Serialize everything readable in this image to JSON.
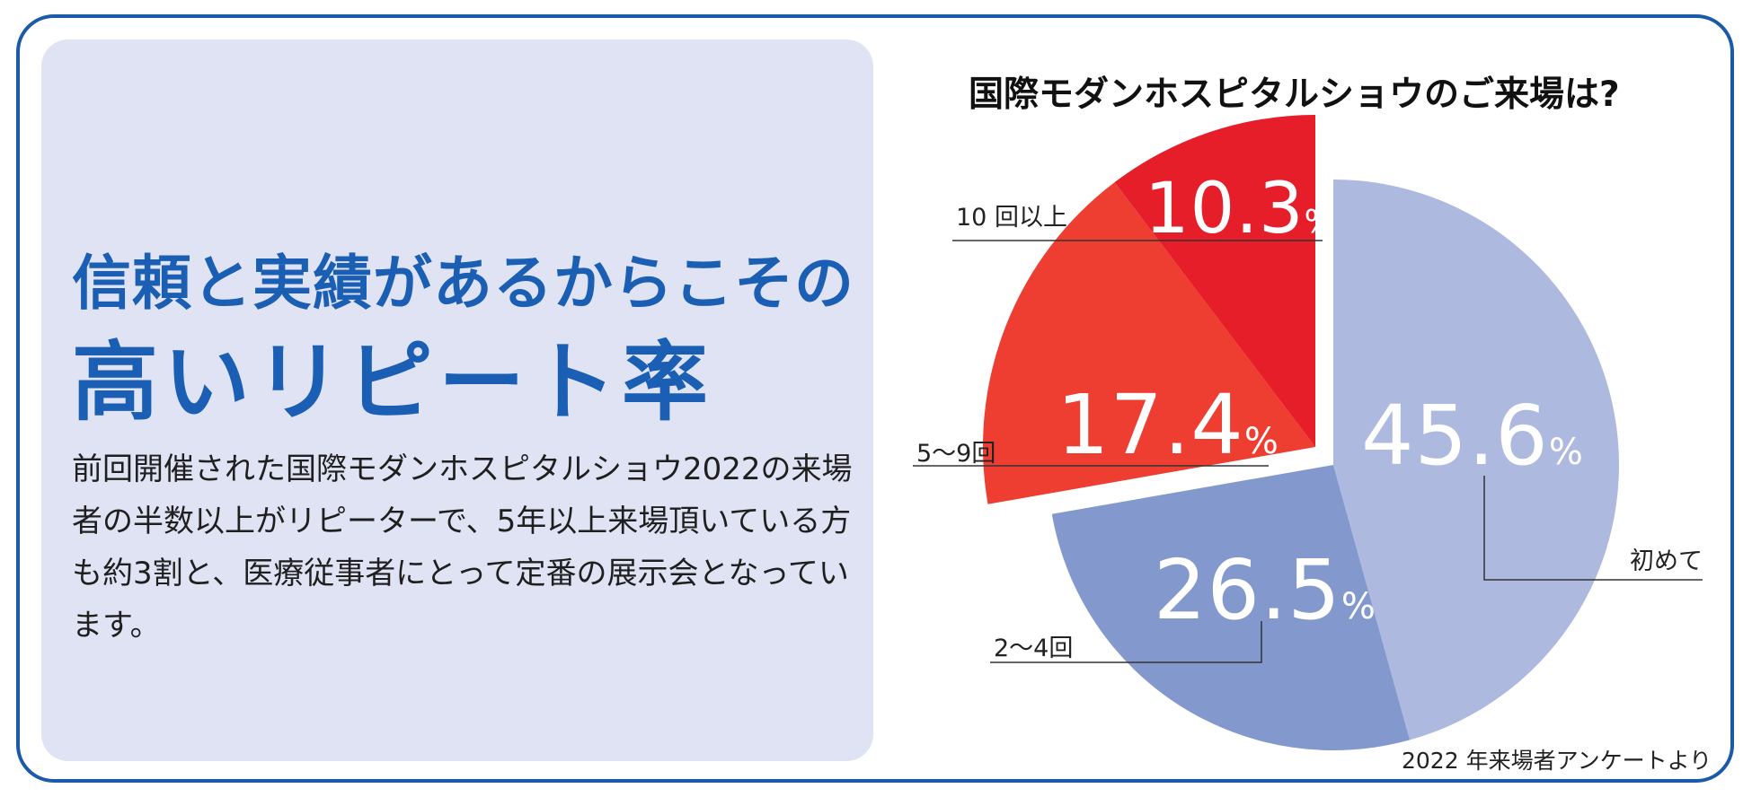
{
  "headline": {
    "line1": "信頼と実績があるからこその",
    "line2": "高いリピート率"
  },
  "body_text": "前回開催された国際モダンホスピタルショウ2022の来場者の半数以上がリピーターで、5年以上来場頂いている方も約3割と、医療従事者にとって定番の展示会となっています。",
  "colors": {
    "frame": "#1b5aa8",
    "panel": "#dfe3f3",
    "headline": "#1a5fb4",
    "first_time": "#adb9de",
    "two_to_four": "#8399cd",
    "five_to_nine": "#ee3e32",
    "ten_plus": "#e61e2a"
  },
  "chart_data": {
    "type": "pie",
    "title": "国際モダンホスピタルショウのご来場は?",
    "unit": "%",
    "slices": [
      {
        "label": "初めて",
        "value": 45.6,
        "display": "45.6",
        "color": "#adb9de"
      },
      {
        "label": "2～4回",
        "value": 26.5,
        "display": "26.5",
        "color": "#8399cd"
      },
      {
        "label": "5～9回",
        "value": 17.4,
        "display": "17.4",
        "color": "#ee3e32",
        "exploded": true
      },
      {
        "label": "10 回以上",
        "value": 10.3,
        "display": "10.3",
        "color": "#e61e2a",
        "exploded": true
      }
    ],
    "start_angle": "12 o'clock, clockwise",
    "legend": "leader-line labels",
    "source": "2022 年来場者アンケートより"
  }
}
